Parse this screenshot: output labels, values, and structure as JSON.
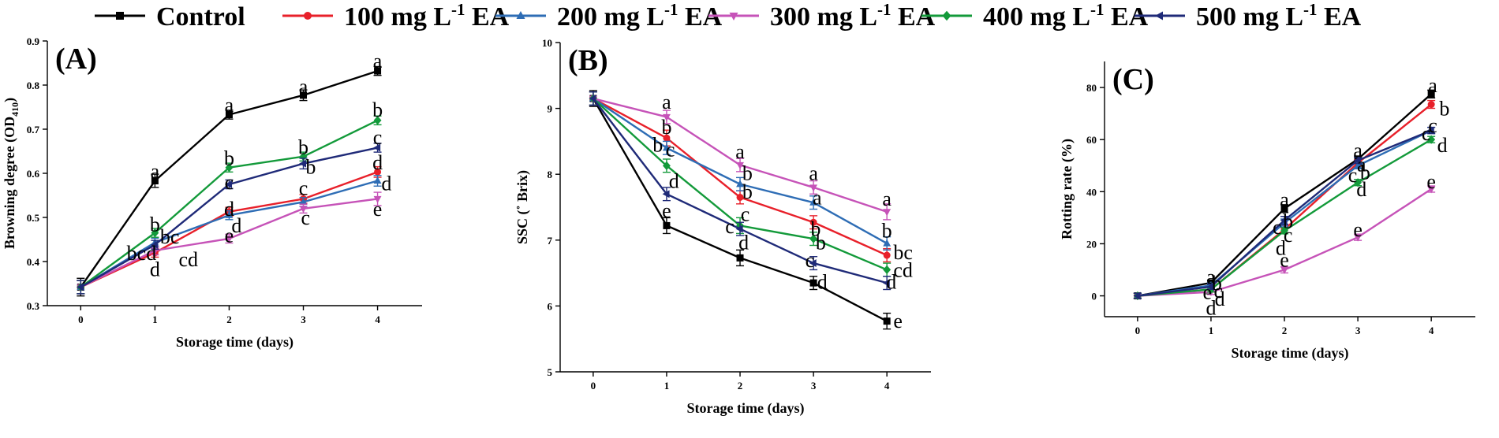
{
  "legend": {
    "items": [
      {
        "label": "Control",
        "dose": "",
        "unit": "",
        "exp": "",
        "suffix": "",
        "color": "#000000",
        "marker": "square"
      },
      {
        "label": "",
        "dose": "100",
        "unit": "mg L",
        "exp": "-1",
        "suffix": "EA",
        "color": "#e8202a",
        "marker": "circle"
      },
      {
        "label": "",
        "dose": "200",
        "unit": "mg L",
        "exp": "-1",
        "suffix": "EA",
        "color": "#2e6db5",
        "marker": "triangle-up"
      },
      {
        "label": "",
        "dose": "300",
        "unit": "mg L",
        "exp": "-1",
        "suffix": "EA",
        "color": "#c653b8",
        "marker": "triangle-down"
      },
      {
        "label": "",
        "dose": "400",
        "unit": "mg L",
        "exp": "-1",
        "suffix": "EA",
        "color": "#139a3a",
        "marker": "diamond"
      },
      {
        "label": "",
        "dose": "500",
        "unit": "mg L",
        "exp": "-1",
        "suffix": "EA",
        "color": "#1f2a78",
        "marker": "triangle-left"
      }
    ]
  },
  "chart_data": [
    {
      "panel": "(A)",
      "type": "line",
      "xlabel": "Storage time (days)",
      "ylabel_main": "Browning degree (OD",
      "ylabel_sub": "410",
      "ylabel_close": ")",
      "x": [
        0,
        1,
        2,
        3,
        4
      ],
      "xlim": [
        -0.45,
        4.6
      ],
      "ylim": [
        0.3,
        0.9
      ],
      "yticks": [
        0.3,
        0.4,
        0.5,
        0.6,
        0.7,
        0.8,
        0.9
      ],
      "yticklabels": [
        "0.3",
        "0.4",
        "0.5",
        "0.6",
        "0.7",
        "0.8",
        "0.9"
      ],
      "series": [
        {
          "name": "Control",
          "values": [
            0.342,
            0.583,
            0.733,
            0.777,
            0.832
          ],
          "err": [
            0.02,
            0.015,
            0.01,
            0.012,
            0.01
          ]
        },
        {
          "name": "100 mg L-1 EA",
          "values": [
            0.342,
            0.42,
            0.513,
            0.542,
            0.603
          ],
          "err": [
            0.015,
            0.01,
            0.01,
            0.01,
            0.012
          ]
        },
        {
          "name": "200 mg L-1 EA",
          "values": [
            0.342,
            0.443,
            0.505,
            0.535,
            0.583
          ],
          "err": [
            0.015,
            0.01,
            0.01,
            0.01,
            0.012
          ]
        },
        {
          "name": "300 mg L-1 EA",
          "values": [
            0.342,
            0.425,
            0.452,
            0.52,
            0.542
          ],
          "err": [
            0.015,
            0.01,
            0.01,
            0.01,
            0.015
          ]
        },
        {
          "name": "400 mg L-1 EA",
          "values": [
            0.342,
            0.465,
            0.613,
            0.638,
            0.72
          ],
          "err": [
            0.015,
            0.01,
            0.01,
            0.01,
            0.01
          ]
        },
        {
          "name": "500 mg L-1 EA",
          "values": [
            0.342,
            0.438,
            0.575,
            0.622,
            0.658
          ],
          "err": [
            0.015,
            0.01,
            0.01,
            0.012,
            0.01
          ]
        }
      ],
      "annotations": [
        {
          "text": "a",
          "x": 1,
          "y": 0.605
        },
        {
          "text": "a",
          "x": 2,
          "y": 0.755
        },
        {
          "text": "a",
          "x": 3,
          "y": 0.797
        },
        {
          "text": "a",
          "x": 4,
          "y": 0.855
        },
        {
          "text": "b",
          "x": 1,
          "y": 0.485
        },
        {
          "text": "bc",
          "x": 1.2,
          "y": 0.457
        },
        {
          "text": "bcd",
          "x": 0.82,
          "y": 0.42
        },
        {
          "text": "cd",
          "x": 1.45,
          "y": 0.405
        },
        {
          "text": "d",
          "x": 1,
          "y": 0.383
        },
        {
          "text": "b",
          "x": 2,
          "y": 0.635
        },
        {
          "text": "c",
          "x": 2,
          "y": 0.58
        },
        {
          "text": "d",
          "x": 2,
          "y": 0.52
        },
        {
          "text": "d",
          "x": 2.1,
          "y": 0.482
        },
        {
          "text": "e",
          "x": 2,
          "y": 0.46
        },
        {
          "text": "b",
          "x": 3,
          "y": 0.66
        },
        {
          "text": "b",
          "x": 3.1,
          "y": 0.615
        },
        {
          "text": "c",
          "x": 3,
          "y": 0.567
        },
        {
          "text": "c",
          "x": 3.03,
          "y": 0.5
        },
        {
          "text": "b",
          "x": 4,
          "y": 0.745
        },
        {
          "text": "c",
          "x": 4,
          "y": 0.682
        },
        {
          "text": "d",
          "x": 4,
          "y": 0.625
        },
        {
          "text": "d",
          "x": 4.12,
          "y": 0.578
        },
        {
          "text": "e",
          "x": 4,
          "y": 0.52
        }
      ]
    },
    {
      "panel": "(B)",
      "type": "line",
      "xlabel": "Storage time (days)",
      "ylabel_main": "SSC (˚ Brix)",
      "ylabel_sub": "",
      "ylabel_close": "",
      "x": [
        0,
        1,
        2,
        3,
        4
      ],
      "xlim": [
        -0.45,
        4.6
      ],
      "ylim": [
        5,
        10
      ],
      "yticks": [
        5,
        6,
        7,
        8,
        9,
        10
      ],
      "yticklabels": [
        "5",
        "6",
        "7",
        "8",
        "9",
        "10"
      ],
      "series": [
        {
          "name": "Control",
          "values": [
            9.15,
            7.22,
            6.73,
            6.35,
            5.77
          ],
          "err": [
            0.12,
            0.12,
            0.12,
            0.1,
            0.12
          ]
        },
        {
          "name": "100 mg L-1 EA",
          "values": [
            9.15,
            8.55,
            7.65,
            7.27,
            6.77
          ],
          "err": [
            0.1,
            0.12,
            0.1,
            0.1,
            0.1
          ]
        },
        {
          "name": "200 mg L-1 EA",
          "values": [
            9.15,
            8.4,
            7.85,
            7.57,
            6.95
          ],
          "err": [
            0.1,
            0.1,
            0.1,
            0.1,
            0.1
          ]
        },
        {
          "name": "300 mg L-1 EA",
          "values": [
            9.15,
            8.87,
            8.14,
            7.8,
            7.43
          ],
          "err": [
            0.1,
            0.1,
            0.1,
            0.1,
            0.12
          ]
        },
        {
          "name": "400 mg L-1 EA",
          "values": [
            9.15,
            8.13,
            7.22,
            7.02,
            6.55
          ],
          "err": [
            0.1,
            0.1,
            0.12,
            0.1,
            0.1
          ]
        },
        {
          "name": "500 mg L-1 EA",
          "values": [
            9.15,
            7.7,
            7.17,
            6.65,
            6.35
          ],
          "err": [
            0.1,
            0.1,
            0.1,
            0.1,
            0.1
          ]
        }
      ],
      "annotations": [
        {
          "text": "a",
          "x": 1,
          "y": 9.1
        },
        {
          "text": "b",
          "x": 1,
          "y": 8.72
        },
        {
          "text": "b",
          "x": 0.88,
          "y": 8.45
        },
        {
          "text": "c",
          "x": 1.05,
          "y": 8.38
        },
        {
          "text": "d",
          "x": 1.1,
          "y": 7.9
        },
        {
          "text": "e",
          "x": 1,
          "y": 7.45
        },
        {
          "text": "a",
          "x": 2,
          "y": 8.35
        },
        {
          "text": "b",
          "x": 2.1,
          "y": 8.02
        },
        {
          "text": "b",
          "x": 2.1,
          "y": 7.74
        },
        {
          "text": "c",
          "x": 2.07,
          "y": 7.4
        },
        {
          "text": "c",
          "x": 1.86,
          "y": 7.21
        },
        {
          "text": "d",
          "x": 2.05,
          "y": 6.97
        },
        {
          "text": "a",
          "x": 3,
          "y": 8.02
        },
        {
          "text": "a",
          "x": 3.05,
          "y": 7.65
        },
        {
          "text": "b",
          "x": 3.03,
          "y": 7.18
        },
        {
          "text": "b",
          "x": 3.1,
          "y": 6.97
        },
        {
          "text": "c",
          "x": 2.95,
          "y": 6.7
        },
        {
          "text": "d",
          "x": 3.12,
          "y": 6.37
        },
        {
          "text": "a",
          "x": 4,
          "y": 7.63
        },
        {
          "text": "b",
          "x": 4,
          "y": 7.15
        },
        {
          "text": "bc",
          "x": 4.22,
          "y": 6.82
        },
        {
          "text": "cd",
          "x": 4.22,
          "y": 6.55
        },
        {
          "text": "d",
          "x": 4.06,
          "y": 6.37
        },
        {
          "text": "e",
          "x": 4.15,
          "y": 5.78
        }
      ]
    },
    {
      "panel": "(C)",
      "type": "line",
      "xlabel": "Storage time (days)",
      "ylabel_main": "Rotting rate (%)",
      "ylabel_sub": "",
      "ylabel_close": "",
      "x": [
        0,
        1,
        2,
        3,
        4
      ],
      "xlim": [
        -0.45,
        4.6
      ],
      "ylim": [
        -8,
        90
      ],
      "yticks": [
        0,
        20,
        40,
        60,
        80
      ],
      "yticklabels": [
        "0",
        "20",
        "40",
        "60",
        "80"
      ],
      "series": [
        {
          "name": "Control",
          "values": [
            0,
            5,
            33.5,
            52.5,
            77.5
          ],
          "err": [
            1,
            1,
            1.5,
            1.2,
            1.5
          ]
        },
        {
          "name": "100 mg L-1 EA",
          "values": [
            0,
            2.5,
            25.5,
            51,
            73.5
          ],
          "err": [
            1,
            1,
            1.5,
            1.2,
            1.5
          ]
        },
        {
          "name": "200 mg L-1 EA",
          "values": [
            0,
            4,
            28,
            50,
            63.5
          ],
          "err": [
            1,
            1,
            1.5,
            1.2,
            1.2
          ]
        },
        {
          "name": "300 mg L-1 EA",
          "values": [
            0,
            1.5,
            10,
            22.5,
            41
          ],
          "err": [
            1,
            1,
            1.2,
            1.2,
            1.2
          ]
        },
        {
          "name": "400 mg L-1 EA",
          "values": [
            0,
            2.5,
            25,
            43.5,
            60
          ],
          "err": [
            1,
            1,
            1.2,
            1.2,
            1.2
          ]
        },
        {
          "name": "500 mg L-1 EA",
          "values": [
            0,
            3.5,
            29,
            52,
            63.5
          ],
          "err": [
            1,
            1,
            1.5,
            1.2,
            1.2
          ]
        }
      ],
      "annotations": [
        {
          "text": "a",
          "x": 1,
          "y": 7.5
        },
        {
          "text": "b",
          "x": 1.08,
          "y": 5
        },
        {
          "text": "c",
          "x": 1.1,
          "y": 2
        },
        {
          "text": "e",
          "x": 0.95,
          "y": 1.5
        },
        {
          "text": "d",
          "x": 1.12,
          "y": -1
        },
        {
          "text": "d",
          "x": 1,
          "y": -4.5
        },
        {
          "text": "a",
          "x": 2,
          "y": 37
        },
        {
          "text": "b",
          "x": 2.05,
          "y": 28.8
        },
        {
          "text": "c",
          "x": 1.9,
          "y": 26.5
        },
        {
          "text": "c",
          "x": 2.05,
          "y": 23.5
        },
        {
          "text": "d",
          "x": 1.95,
          "y": 18.5
        },
        {
          "text": "e",
          "x": 2,
          "y": 14
        },
        {
          "text": "a",
          "x": 3,
          "y": 56
        },
        {
          "text": "a",
          "x": 3.05,
          "y": 50.5
        },
        {
          "text": "b",
          "x": 3.1,
          "y": 47.5
        },
        {
          "text": "c",
          "x": 2.93,
          "y": 46.5
        },
        {
          "text": "d",
          "x": 3.05,
          "y": 41
        },
        {
          "text": "e",
          "x": 3,
          "y": 25.5
        },
        {
          "text": "a",
          "x": 4.02,
          "y": 81
        },
        {
          "text": "b",
          "x": 4.18,
          "y": 72
        },
        {
          "text": "c",
          "x": 4.02,
          "y": 65.5
        },
        {
          "text": "c",
          "x": 3.93,
          "y": 62.5
        },
        {
          "text": "d",
          "x": 4.15,
          "y": 58
        },
        {
          "text": "e",
          "x": 4,
          "y": 44
        }
      ]
    }
  ]
}
